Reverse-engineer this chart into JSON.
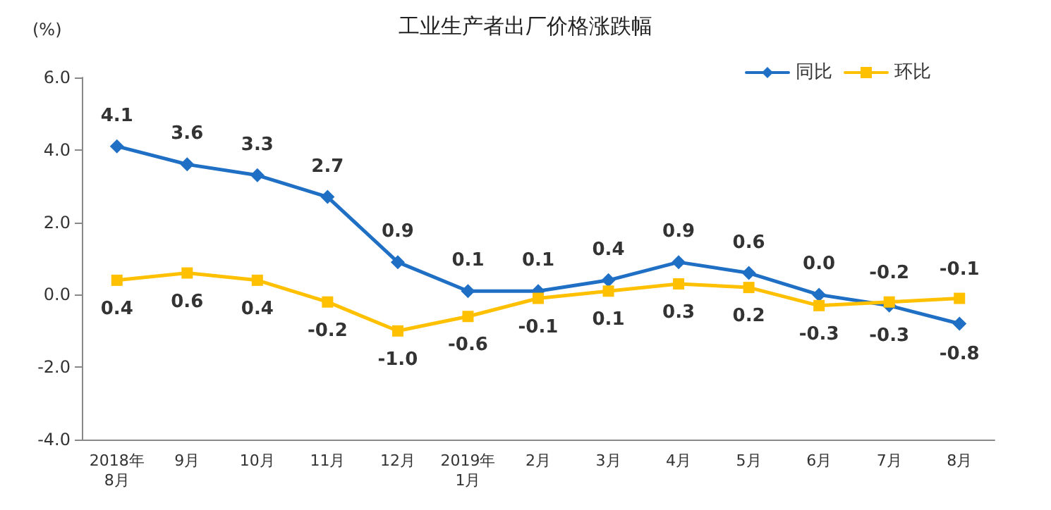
{
  "chart_data": {
    "type": "line",
    "title": "工业生产者出厂价格涨跌幅",
    "ylabel": "(%)",
    "categories": [
      "2018年\n8月",
      "9月",
      "10月",
      "11月",
      "12月",
      "2019年\n1月",
      "2月",
      "3月",
      "4月",
      "5月",
      "6月",
      "7月",
      "8月"
    ],
    "series": [
      {
        "name": "同比",
        "color": "#1f6fc5",
        "marker": "diamond",
        "values": [
          4.1,
          3.6,
          3.3,
          2.7,
          0.9,
          0.1,
          0.1,
          0.4,
          0.9,
          0.6,
          0.0,
          -0.3,
          -0.8
        ],
        "value_labels": [
          "4.1",
          "3.6",
          "3.3",
          "2.7",
          "0.9",
          "0.1",
          "0.1",
          "0.4",
          "0.9",
          "0.6",
          "0.0",
          "-0.3",
          "-0.8"
        ]
      },
      {
        "name": "环比",
        "color": "#ffc000",
        "marker": "square",
        "values": [
          0.4,
          0.6,
          0.4,
          -0.2,
          -1.0,
          -0.6,
          -0.1,
          0.1,
          0.3,
          0.2,
          -0.3,
          -0.2,
          -0.1
        ],
        "value_labels": [
          "0.4",
          "0.6",
          "0.4",
          "-0.2",
          "-1.0",
          "-0.6",
          "-0.1",
          "0.1",
          "0.3",
          "0.2",
          "-0.3",
          "-0.2",
          "-0.1"
        ]
      }
    ],
    "ylim": [
      -4,
      6
    ],
    "yticks": [
      {
        "value": -4,
        "label": "-4.0"
      },
      {
        "value": -2,
        "label": "-2.0"
      },
      {
        "value": 0,
        "label": "0.0"
      },
      {
        "value": 2,
        "label": "2.0"
      },
      {
        "value": 4,
        "label": "4.0"
      },
      {
        "value": 6,
        "label": "6.0"
      }
    ],
    "grid": false,
    "legend": "top right",
    "line_style": "solid"
  }
}
